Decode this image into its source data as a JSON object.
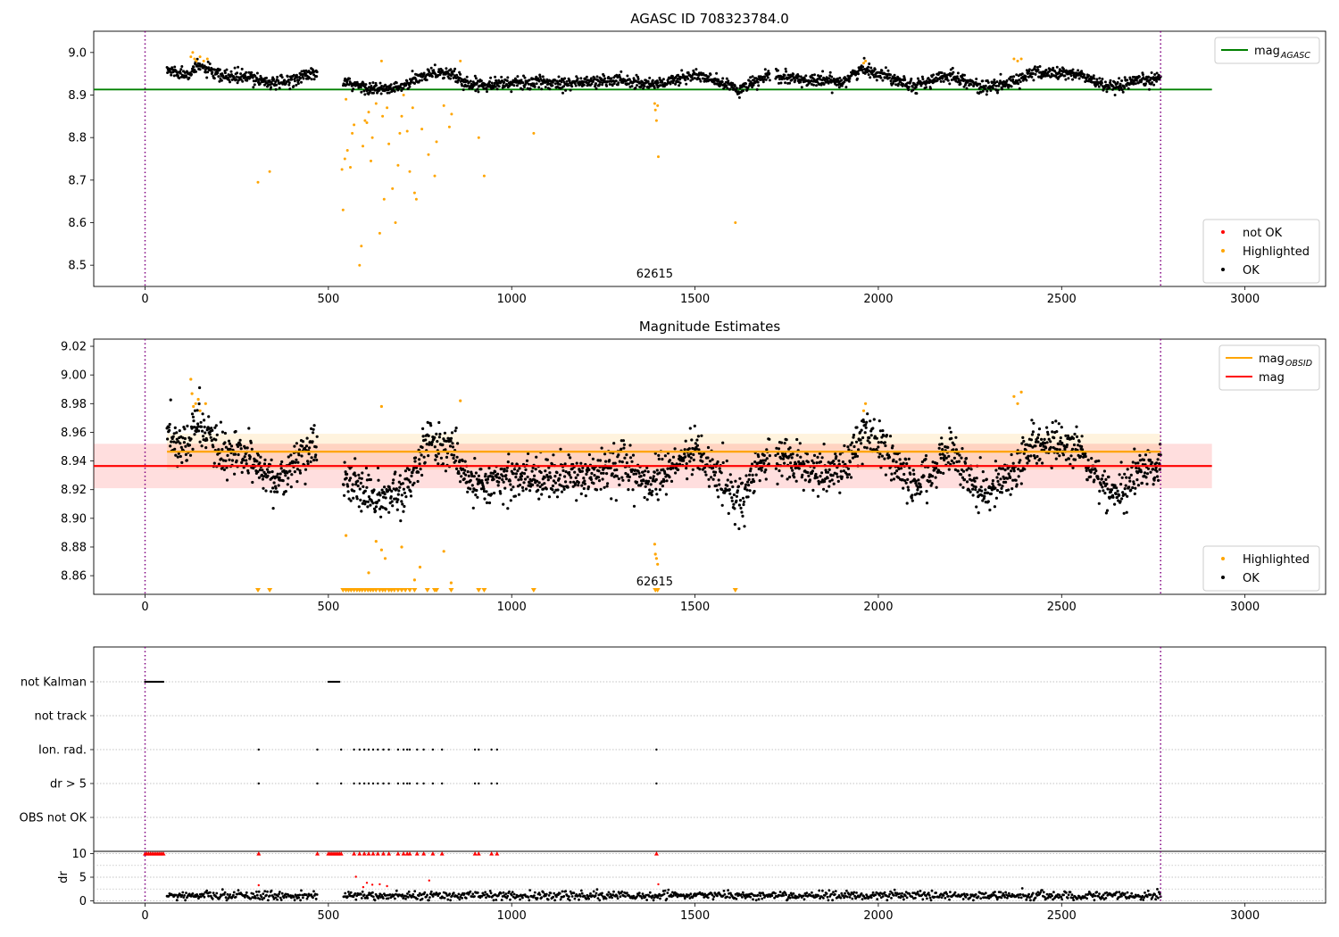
{
  "chart_data": [
    {
      "type": "scatter",
      "title": "AGASC ID 708323784.0",
      "xlim": [
        -140,
        3220
      ],
      "ylim": [
        8.45,
        9.05
      ],
      "xticks": [
        "0",
        "500",
        "1000",
        "1500",
        "2000",
        "2500",
        "3000"
      ],
      "xtick_values": [
        0,
        500,
        1000,
        1500,
        2000,
        2500,
        3000
      ],
      "yticks": [
        "8.5",
        "8.6",
        "8.7",
        "8.8",
        "8.9",
        "9.0"
      ],
      "ytick_values": [
        8.5,
        8.6,
        8.7,
        8.8,
        8.9,
        9.0
      ],
      "vlines": [
        0,
        2770
      ],
      "obsid_label": "62615",
      "obsid_label_x": 1390,
      "hlines": [
        {
          "name": "mag_AGASC",
          "y": 8.913,
          "x0": -140,
          "x1": 2910,
          "color": "#008000"
        }
      ],
      "legend_top": {
        "placement": "upper right",
        "entries": [
          {
            "label": "mag",
            "sub": "AGASC",
            "color": "#008000"
          }
        ]
      },
      "legend_bottom": {
        "placement": "lower right",
        "entries": [
          {
            "label": "not OK",
            "color": "#ff0000"
          },
          {
            "label": "Highlighted",
            "color": "#ffa500"
          },
          {
            "label": "OK",
            "color": "#000000"
          }
        ]
      },
      "series": [
        {
          "name": "OK",
          "color": "#000000",
          "generated_from": "ok_trend",
          "n": 2200,
          "x_range": [
            60,
            2770
          ]
        },
        {
          "name": "Highlighted",
          "color": "#ffa500",
          "points": [
            [
              125,
              8.99
            ],
            [
              130,
              9.0
            ],
            [
              135,
              8.985
            ],
            [
              140,
              8.98
            ],
            [
              150,
              8.99
            ],
            [
              160,
              8.98
            ],
            [
              170,
              8.985
            ],
            [
              308,
              8.695
            ],
            [
              340,
              8.72
            ],
            [
              537,
              8.725
            ],
            [
              540,
              8.63
            ],
            [
              545,
              8.75
            ],
            [
              548,
              8.89
            ],
            [
              552,
              8.77
            ],
            [
              560,
              8.73
            ],
            [
              565,
              8.81
            ],
            [
              570,
              8.83
            ],
            [
              585,
              8.5
            ],
            [
              590,
              8.545
            ],
            [
              594,
              8.78
            ],
            [
              600,
              8.84
            ],
            [
              605,
              8.835
            ],
            [
              610,
              8.86
            ],
            [
              616,
              8.745
            ],
            [
              620,
              8.8
            ],
            [
              630,
              8.88
            ],
            [
              640,
              8.575
            ],
            [
              645,
              8.98
            ],
            [
              648,
              8.85
            ],
            [
              652,
              8.655
            ],
            [
              660,
              8.87
            ],
            [
              665,
              8.785
            ],
            [
              675,
              8.68
            ],
            [
              683,
              8.6
            ],
            [
              690,
              8.735
            ],
            [
              695,
              8.81
            ],
            [
              700,
              8.85
            ],
            [
              705,
              8.9
            ],
            [
              715,
              8.815
            ],
            [
              722,
              8.72
            ],
            [
              730,
              8.87
            ],
            [
              735,
              8.67
            ],
            [
              740,
              8.655
            ],
            [
              755,
              8.82
            ],
            [
              773,
              8.76
            ],
            [
              790,
              8.71
            ],
            [
              795,
              8.79
            ],
            [
              815,
              8.875
            ],
            [
              830,
              8.825
            ],
            [
              836,
              8.855
            ],
            [
              860,
              8.98
            ],
            [
              910,
              8.8
            ],
            [
              925,
              8.71
            ],
            [
              1060,
              8.81
            ],
            [
              1390,
              8.88
            ],
            [
              1392,
              8.865
            ],
            [
              1395,
              8.84
            ],
            [
              1398,
              8.875
            ],
            [
              1400,
              8.755
            ],
            [
              1610,
              8.6
            ],
            [
              1960,
              8.975
            ],
            [
              1965,
              8.98
            ],
            [
              2370,
              8.985
            ],
            [
              2380,
              8.98
            ],
            [
              2390,
              8.985
            ]
          ]
        }
      ]
    },
    {
      "type": "scatter",
      "title": "Magnitude Estimates",
      "xlim": [
        -140,
        3220
      ],
      "ylim": [
        8.847,
        9.025
      ],
      "xticks": [
        "0",
        "500",
        "1000",
        "1500",
        "2000",
        "2500",
        "3000"
      ],
      "xtick_values": [
        0,
        500,
        1000,
        1500,
        2000,
        2500,
        3000
      ],
      "yticks": [
        "8.86",
        "8.88",
        "8.90",
        "8.92",
        "8.94",
        "8.96",
        "8.98",
        "9.00",
        "9.02"
      ],
      "ytick_values": [
        8.86,
        8.88,
        8.9,
        8.92,
        8.94,
        8.96,
        8.98,
        9.0,
        9.02
      ],
      "vlines": [
        0,
        2770
      ],
      "obsid_label": "62615",
      "obsid_label_x": 1390,
      "hlines": [
        {
          "name": "mag_OBSID",
          "y": 8.9465,
          "x0": 60,
          "x1": 2770,
          "color": "#ffa500",
          "band": [
            8.934,
            8.959
          ],
          "band_color": "#ffa500"
        },
        {
          "name": "mag",
          "y": 8.9365,
          "x0": -140,
          "x1": 2910,
          "color": "#ff0000",
          "band": [
            8.921,
            8.952
          ],
          "band_color": "#ff0000"
        }
      ],
      "legend_top": {
        "placement": "upper right",
        "entries": [
          {
            "label": "mag",
            "sub": "OBSID",
            "color": "#ffa500"
          },
          {
            "label": "mag",
            "color": "#ff0000"
          }
        ]
      },
      "legend_bottom": {
        "placement": "lower right",
        "entries": [
          {
            "label": "Highlighted",
            "color": "#ffa500"
          },
          {
            "label": "OK",
            "color": "#000000"
          }
        ]
      },
      "series": [
        {
          "name": "OK",
          "color": "#000000",
          "generated_from": "ok_trend",
          "n": 2200,
          "x_range": [
            60,
            2770
          ]
        },
        {
          "name": "Highlighted",
          "color": "#ffa500",
          "points": [
            [
              125,
              8.997
            ],
            [
              128,
              8.987
            ],
            [
              132,
              8.978
            ],
            [
              138,
              8.98
            ],
            [
              145,
              8.983
            ],
            [
              150,
              8.975
            ],
            [
              165,
              8.98
            ],
            [
              645,
              8.978
            ],
            [
              860,
              8.982
            ],
            [
              548,
              8.888
            ],
            [
              610,
              8.862
            ],
            [
              630,
              8.884
            ],
            [
              645,
              8.878
            ],
            [
              655,
              8.872
            ],
            [
              700,
              8.88
            ],
            [
              735,
              8.857
            ],
            [
              750,
              8.866
            ],
            [
              815,
              8.877
            ],
            [
              835,
              8.855
            ],
            [
              1390,
              8.882
            ],
            [
              1392,
              8.875
            ],
            [
              1395,
              8.872
            ],
            [
              1398,
              8.868
            ],
            [
              1960,
              8.975
            ],
            [
              1965,
              8.98
            ],
            [
              2370,
              8.985
            ],
            [
              2380,
              8.98
            ],
            [
              2390,
              8.988
            ]
          ]
        },
        {
          "name": "Highlighted (below range)",
          "color": "#ffa500",
          "marker": "triangle-down",
          "x": [
            308,
            340,
            540,
            548,
            555,
            562,
            570,
            578,
            585,
            592,
            600,
            608,
            615,
            622,
            630,
            640,
            648,
            655,
            665,
            672,
            680,
            690,
            700,
            710,
            722,
            735,
            770,
            790,
            795,
            835,
            910,
            925,
            1060,
            1392,
            1398,
            1610
          ]
        }
      ]
    },
    {
      "type": "scatter",
      "title": "",
      "xlim": [
        -140,
        3220
      ],
      "vlines": [
        0,
        2770
      ],
      "flag_rows": [
        "not Kalman",
        "not track",
        "Ion. rad.",
        "dr > 5",
        "OBS not OK"
      ],
      "flags": {
        "not Kalman": {
          "ranges": [
            [
              0,
              50
            ],
            [
              500,
              530
            ]
          ]
        },
        "not track": {
          "x": []
        },
        "Ion. rad.": {
          "x": [
            310,
            470,
            535,
            570,
            585,
            598,
            610,
            622,
            635,
            650,
            665,
            690,
            705,
            715,
            722,
            742,
            760,
            785,
            810,
            900,
            910,
            945,
            960,
            1395
          ]
        },
        "dr > 5": {
          "x": [
            310,
            470,
            535,
            570,
            585,
            598,
            610,
            622,
            635,
            650,
            665,
            690,
            705,
            715,
            722,
            742,
            760,
            785,
            810,
            900,
            910,
            945,
            960,
            1395
          ]
        },
        "OBS not OK": {
          "x": []
        }
      },
      "dr_panel": {
        "ylabel": "dr",
        "yticks": [
          "0",
          "5",
          "10"
        ],
        "ytick_values": [
          0,
          5,
          10
        ],
        "ylim": [
          -0.5,
          10.5
        ],
        "capped_points_x": [
          0,
          5,
          10,
          15,
          20,
          25,
          30,
          35,
          40,
          45,
          50,
          310,
          470,
          500,
          505,
          510,
          515,
          520,
          525,
          530,
          535,
          570,
          585,
          598,
          610,
          622,
          635,
          650,
          665,
          690,
          705,
          715,
          722,
          742,
          760,
          785,
          810,
          900,
          910,
          945,
          960,
          1395
        ],
        "cap_value": 10,
        "notok_points": [
          [
            310,
            3.3
          ],
          [
            575,
            5.1
          ],
          [
            595,
            2.9
          ],
          [
            605,
            3.8
          ],
          [
            620,
            3.4
          ],
          [
            640,
            3.5
          ],
          [
            660,
            3.1
          ],
          [
            775,
            4.3
          ],
          [
            1400,
            3.5
          ]
        ],
        "ok_color": "#000000",
        "notok_color": "#ff0000",
        "ok_range": [
          60,
          2770
        ]
      }
    }
  ]
}
